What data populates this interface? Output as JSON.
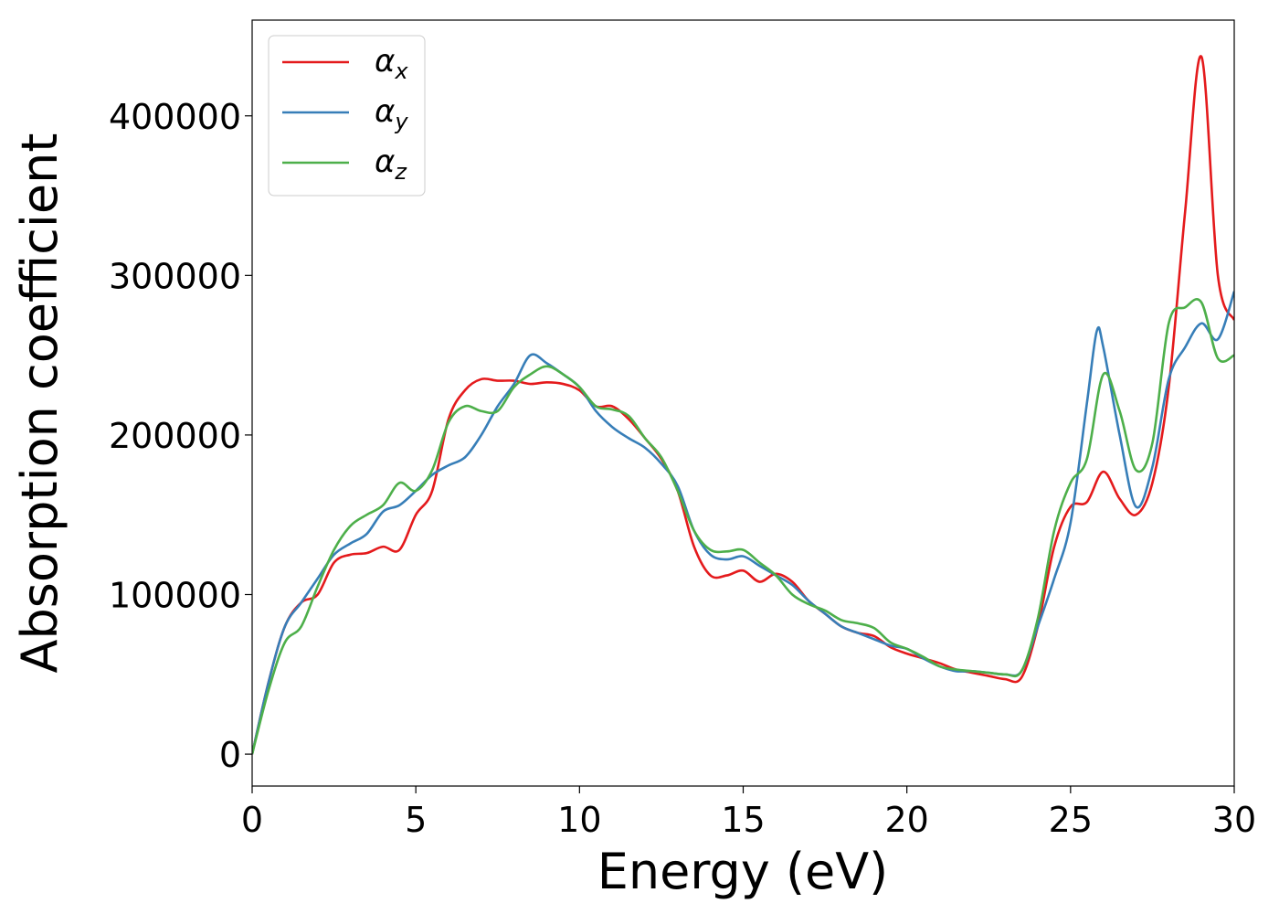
{
  "chart_data": {
    "type": "line",
    "title": "",
    "xlabel": "Energy (eV)",
    "ylabel": "Absorption coefficient",
    "xlim": [
      0,
      30
    ],
    "ylim": [
      -20000,
      460000
    ],
    "xticks": [
      0,
      5,
      10,
      15,
      20,
      25,
      30
    ],
    "xtick_labels": [
      "0",
      "5",
      "10",
      "15",
      "20",
      "25",
      "30"
    ],
    "yticks": [
      0,
      100000,
      200000,
      300000,
      400000
    ],
    "ytick_labels": [
      "0",
      "100000",
      "200000",
      "300000",
      "400000"
    ],
    "grid": false,
    "legend_position": "top-left",
    "series": [
      {
        "name": "αx",
        "symbol": "α",
        "subscript": "x",
        "color": "#e41a1c",
        "x": [
          0,
          0.5,
          1,
          1.5,
          2,
          2.5,
          3,
          3.5,
          4,
          4.5,
          5,
          5.5,
          6,
          6.5,
          7,
          7.5,
          8,
          8.5,
          9,
          9.5,
          10,
          10.5,
          11,
          11.5,
          12,
          12.5,
          13,
          13.5,
          14,
          14.5,
          15,
          15.5,
          16,
          16.5,
          17,
          17.5,
          18,
          18.5,
          19,
          19.5,
          20,
          20.5,
          21,
          21.5,
          22,
          22.5,
          23,
          23.5,
          24,
          24.5,
          25,
          25.5,
          26,
          26.5,
          27,
          27.5,
          28,
          28.5,
          29,
          29.5,
          30
        ],
        "values": [
          0,
          45000,
          80000,
          95000,
          100000,
          120000,
          125000,
          126000,
          130000,
          128000,
          150000,
          165000,
          210000,
          228000,
          235000,
          234000,
          234000,
          232000,
          233000,
          232000,
          228000,
          218000,
          218000,
          210000,
          198000,
          185000,
          165000,
          130000,
          112000,
          112000,
          115000,
          108000,
          113000,
          108000,
          96000,
          88000,
          80000,
          76000,
          74000,
          67000,
          63000,
          60000,
          57000,
          53000,
          51000,
          49000,
          47000,
          48000,
          80000,
          130000,
          155000,
          158000,
          177000,
          160000,
          150000,
          170000,
          230000,
          340000,
          437000,
          300000,
          272000
        ]
      },
      {
        "name": "αy",
        "symbol": "α",
        "subscript": "y",
        "color": "#377eb8",
        "x": [
          0,
          0.5,
          1,
          1.5,
          2,
          2.5,
          3,
          3.5,
          4,
          4.5,
          5,
          5.5,
          6,
          6.5,
          7,
          7.5,
          8,
          8.5,
          9,
          9.5,
          10,
          10.5,
          11,
          11.5,
          12,
          12.5,
          13,
          13.5,
          14,
          14.5,
          15,
          15.5,
          16,
          16.5,
          17,
          17.5,
          18,
          18.5,
          19,
          19.5,
          20,
          20.5,
          21,
          21.5,
          22,
          22.5,
          23,
          23.5,
          24,
          24.5,
          25,
          25.5,
          25.8,
          26,
          26.5,
          27,
          27.5,
          28,
          28.5,
          29,
          29.5,
          30
        ],
        "values": [
          0,
          45000,
          80000,
          95000,
          110000,
          125000,
          132000,
          138000,
          152000,
          156000,
          165000,
          175000,
          181000,
          186000,
          200000,
          218000,
          232000,
          250000,
          245000,
          238000,
          230000,
          215000,
          205000,
          198000,
          192000,
          182000,
          168000,
          140000,
          125000,
          122000,
          124000,
          118000,
          112000,
          106000,
          96000,
          88000,
          80000,
          76000,
          72000,
          68000,
          66000,
          60000,
          55000,
          52000,
          52000,
          51000,
          50000,
          52000,
          80000,
          110000,
          145000,
          220000,
          265000,
          255000,
          200000,
          155000,
          180000,
          235000,
          255000,
          270000,
          260000,
          290000
        ]
      },
      {
        "name": "αz",
        "symbol": "α",
        "subscript": "z",
        "color": "#4daf4a",
        "x": [
          0,
          0.5,
          1,
          1.5,
          2,
          2.5,
          3,
          3.5,
          4,
          4.5,
          5,
          5.5,
          6,
          6.5,
          7,
          7.5,
          8,
          8.5,
          9,
          9.5,
          10,
          10.5,
          11,
          11.5,
          12,
          12.5,
          13,
          13.5,
          14,
          14.5,
          15,
          15.5,
          16,
          16.5,
          17,
          17.5,
          18,
          18.5,
          19,
          19.5,
          20,
          20.5,
          21,
          21.5,
          22,
          22.5,
          23,
          23.5,
          24,
          24.5,
          25,
          25.5,
          26,
          26.5,
          27,
          27.5,
          28,
          28.5,
          29,
          29.5,
          30
        ],
        "values": [
          0,
          40000,
          70000,
          80000,
          105000,
          128000,
          143000,
          150000,
          156000,
          170000,
          165000,
          178000,
          208000,
          218000,
          215000,
          215000,
          230000,
          238000,
          243000,
          238000,
          230000,
          218000,
          216000,
          212000,
          198000,
          186000,
          165000,
          140000,
          128000,
          127000,
          128000,
          120000,
          112000,
          100000,
          94000,
          90000,
          84000,
          82000,
          79000,
          70000,
          66000,
          61000,
          55000,
          53000,
          52000,
          51000,
          50000,
          52000,
          85000,
          140000,
          170000,
          185000,
          238000,
          215000,
          178000,
          195000,
          270000,
          280000,
          283000,
          248000,
          250000
        ]
      }
    ]
  }
}
